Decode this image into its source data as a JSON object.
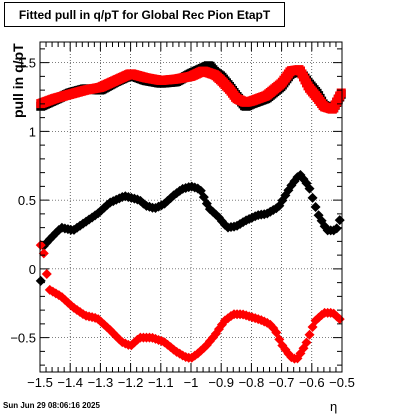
{
  "chart_data": {
    "type": "scatter",
    "title": "Fitted pull in q/pT for Global Rec Pion EtapT",
    "xlabel": "η",
    "ylabel": "pull in q/pT",
    "xlim": [
      -1.5,
      -0.5
    ],
    "ylim": [
      -0.75,
      1.65
    ],
    "grid": true,
    "x_ticks": [
      -1.5,
      -1.4,
      -1.3,
      -1.2,
      -1.1,
      -1.0,
      -0.9,
      -0.8,
      -0.7,
      -0.6,
      -0.5
    ],
    "x_tick_labels": [
      "−1.5",
      "−1.4",
      "−1.3",
      "−1.2",
      "−1.1",
      "−1",
      "−0.9",
      "−0.8",
      "−0.7",
      "−0.6",
      "−0.5"
    ],
    "y_ticks": [
      -0.5,
      0,
      0.5,
      1,
      1.5
    ],
    "y_tick_labels": [
      "−0.5",
      "0",
      "0.5",
      "1",
      "1.5"
    ],
    "x": [
      -1.4975,
      -1.4925,
      -1.4875,
      -1.4825,
      -1.4775,
      -1.4725,
      -1.4675,
      -1.4625,
      -1.4575,
      -1.4525,
      -1.4475,
      -1.4425,
      -1.4375,
      -1.4325,
      -1.4275,
      -1.4225,
      -1.4175,
      -1.4125,
      -1.4075,
      -1.4025,
      -1.3975,
      -1.3925,
      -1.3875,
      -1.3825,
      -1.3775,
      -1.3725,
      -1.3675,
      -1.3625,
      -1.3575,
      -1.3525,
      -1.3475,
      -1.3425,
      -1.3375,
      -1.3325,
      -1.3275,
      -1.3225,
      -1.3175,
      -1.3125,
      -1.3075,
      -1.3025,
      -1.2975,
      -1.2925,
      -1.2875,
      -1.2825,
      -1.2775,
      -1.2725,
      -1.2675,
      -1.2625,
      -1.2575,
      -1.2525,
      -1.2475,
      -1.2425,
      -1.2375,
      -1.2325,
      -1.2275,
      -1.2225,
      -1.2175,
      -1.2125,
      -1.2075,
      -1.2025,
      -1.1975,
      -1.1925,
      -1.1875,
      -1.1825,
      -1.1775,
      -1.1725,
      -1.1675,
      -1.1625,
      -1.1575,
      -1.1525,
      -1.1475,
      -1.1425,
      -1.1375,
      -1.1325,
      -1.1275,
      -1.1225,
      -1.1175,
      -1.1125,
      -1.1075,
      -1.1025,
      -1.0975,
      -1.0925,
      -1.0875,
      -1.0825,
      -1.0775,
      -1.0725,
      -1.0675,
      -1.0625,
      -1.0575,
      -1.0525,
      -1.0475,
      -1.0425,
      -1.0375,
      -1.0325,
      -1.0275,
      -1.0225,
      -1.0175,
      -1.0125,
      -1.0075,
      -1.0025,
      -0.9975,
      -0.9925,
      -0.9875,
      -0.9825,
      -0.9775,
      -0.9725,
      -0.9675,
      -0.9625,
      -0.9575,
      -0.9525,
      -0.9475,
      -0.9425,
      -0.9375,
      -0.9325,
      -0.9275,
      -0.9225,
      -0.9175,
      -0.9125,
      -0.9075,
      -0.9025,
      -0.8975,
      -0.8925,
      -0.8875,
      -0.8825,
      -0.8775,
      -0.8725,
      -0.8675,
      -0.8625,
      -0.8575,
      -0.8525,
      -0.8475,
      -0.8425,
      -0.8375,
      -0.8325,
      -0.8275,
      -0.8225,
      -0.8175,
      -0.8125,
      -0.8075,
      -0.8025,
      -0.7975,
      -0.7925,
      -0.7875,
      -0.7825,
      -0.7775,
      -0.7725,
      -0.7675,
      -0.7625,
      -0.7575,
      -0.7525,
      -0.7475,
      -0.7425,
      -0.7375,
      -0.7325,
      -0.7275,
      -0.7225,
      -0.7175,
      -0.7125,
      -0.7075,
      -0.7025,
      -0.6975,
      -0.6925,
      -0.6875,
      -0.6825,
      -0.6775,
      -0.6725,
      -0.6675,
      -0.6625,
      -0.6575,
      -0.6525,
      -0.6475,
      -0.6425,
      -0.6375,
      -0.6325,
      -0.6275,
      -0.6225,
      -0.6175,
      -0.6125,
      -0.6075,
      -0.6025,
      -0.5975,
      -0.5925,
      -0.5875,
      -0.5825,
      -0.5775,
      -0.5725,
      -0.5675,
      -0.5625,
      -0.5575,
      -0.5525,
      -0.5475,
      -0.5425,
      -0.5375,
      -0.5325,
      -0.5275,
      -0.5225,
      -0.5175,
      -0.5125,
      -0.5075,
      -0.5025
    ],
    "series": [
      {
        "group": "width",
        "color": "#000000",
        "marker": "square",
        "anchors_x": [
          -1.5,
          -1.45,
          -1.4,
          -1.35,
          -1.3,
          -1.25,
          -1.2,
          -1.15,
          -1.1,
          -1.05,
          -1.0,
          -0.97,
          -0.94,
          -0.92,
          -0.9,
          -0.87,
          -0.85,
          -0.82,
          -0.8,
          -0.75,
          -0.7,
          -0.67,
          -0.64,
          -0.61,
          -0.58,
          -0.56,
          -0.53,
          -0.5
        ],
        "anchors_y": [
          1.18,
          1.23,
          1.28,
          1.31,
          1.3,
          1.36,
          1.41,
          1.37,
          1.35,
          1.36,
          1.42,
          1.45,
          1.48,
          1.43,
          1.4,
          1.32,
          1.26,
          1.18,
          1.2,
          1.24,
          1.33,
          1.42,
          1.44,
          1.35,
          1.27,
          1.19,
          1.16,
          1.28
        ]
      },
      {
        "group": "width",
        "color": "#ff0000",
        "marker": "square",
        "anchors_x": [
          -1.5,
          -1.45,
          -1.4,
          -1.35,
          -1.3,
          -1.25,
          -1.2,
          -1.15,
          -1.1,
          -1.05,
          -1.0,
          -0.96,
          -0.92,
          -0.9,
          -0.87,
          -0.85,
          -0.82,
          -0.8,
          -0.75,
          -0.7,
          -0.67,
          -0.64,
          -0.61,
          -0.58,
          -0.56,
          -0.53,
          -0.5
        ],
        "anchors_y": [
          1.2,
          1.24,
          1.27,
          1.3,
          1.32,
          1.37,
          1.42,
          1.39,
          1.37,
          1.38,
          1.4,
          1.44,
          1.41,
          1.37,
          1.3,
          1.24,
          1.21,
          1.22,
          1.26,
          1.35,
          1.44,
          1.45,
          1.32,
          1.24,
          1.18,
          1.16,
          1.29
        ]
      },
      {
        "group": "mean",
        "color": "#000000",
        "marker": "diamond",
        "anchors_x": [
          -1.5,
          -1.49,
          -1.47,
          -1.43,
          -1.39,
          -1.35,
          -1.31,
          -1.27,
          -1.22,
          -1.17,
          -1.15,
          -1.12,
          -1.09,
          -1.06,
          -1.03,
          -1.0,
          -0.97,
          -0.94,
          -0.91,
          -0.88,
          -0.85,
          -0.82,
          -0.78,
          -0.75,
          -0.71,
          -0.67,
          -0.64,
          -0.61,
          -0.58,
          -0.55,
          -0.52,
          -0.5
        ],
        "anchors_y": [
          -0.17,
          0.16,
          0.21,
          0.3,
          0.28,
          0.34,
          0.4,
          0.48,
          0.53,
          0.5,
          0.46,
          0.44,
          0.47,
          0.53,
          0.58,
          0.6,
          0.58,
          0.44,
          0.38,
          0.3,
          0.31,
          0.35,
          0.39,
          0.4,
          0.45,
          0.6,
          0.69,
          0.6,
          0.4,
          0.28,
          0.28,
          0.4
        ]
      },
      {
        "group": "mean",
        "color": "#ff0000",
        "marker": "diamond",
        "anchors_x": [
          -1.5,
          -1.49,
          -1.47,
          -1.43,
          -1.39,
          -1.35,
          -1.31,
          -1.27,
          -1.23,
          -1.2,
          -1.17,
          -1.13,
          -1.09,
          -1.05,
          -1.02,
          -1.0,
          -0.98,
          -0.95,
          -0.92,
          -0.89,
          -0.86,
          -0.83,
          -0.8,
          -0.77,
          -0.74,
          -0.72,
          -0.7,
          -0.67,
          -0.65,
          -0.62,
          -0.59,
          -0.56,
          -0.53,
          -0.5
        ],
        "anchors_y": [
          0.18,
          0.15,
          -0.15,
          -0.2,
          -0.28,
          -0.34,
          -0.36,
          -0.44,
          -0.53,
          -0.56,
          -0.5,
          -0.5,
          -0.53,
          -0.6,
          -0.64,
          -0.65,
          -0.62,
          -0.56,
          -0.48,
          -0.38,
          -0.33,
          -0.33,
          -0.35,
          -0.37,
          -0.4,
          -0.45,
          -0.55,
          -0.64,
          -0.66,
          -0.55,
          -0.38,
          -0.32,
          -0.32,
          -0.38
        ]
      }
    ]
  },
  "footer": {
    "timestamp": "Sun Jun 29 08:06:16 2025"
  }
}
